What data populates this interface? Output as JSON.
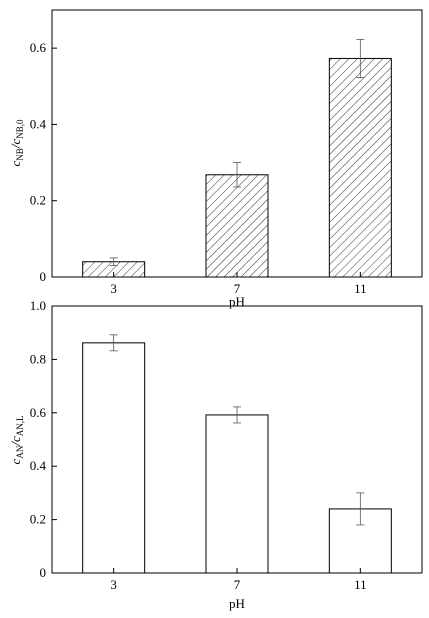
{
  "chart_data": [
    {
      "type": "bar",
      "categories": [
        "3",
        "7",
        "11"
      ],
      "values": [
        0.04,
        0.268,
        0.573
      ],
      "errors": [
        0.01,
        0.032,
        0.05
      ],
      "xlabel": "pH",
      "ylabel": {
        "main": "c",
        "sub1": "NB",
        "sep": "/c",
        "sub2": "NB,0"
      },
      "ylim": [
        0,
        0.7
      ],
      "yticks": [
        "0",
        "0.2",
        "0.4",
        "0.6"
      ],
      "ytick_values": [
        0,
        0.2,
        0.4,
        0.6
      ],
      "fill": "hatched",
      "grid": false,
      "legend": "none"
    },
    {
      "type": "bar",
      "categories": [
        "3",
        "7",
        "11"
      ],
      "values": [
        0.862,
        0.592,
        0.24
      ],
      "errors": [
        0.03,
        0.03,
        0.06
      ],
      "xlabel": "pH",
      "ylabel": {
        "main": "c",
        "sub1": "AN",
        "sep": "/c",
        "sub2": "AN,L"
      },
      "ylim": [
        0,
        1.0
      ],
      "yticks": [
        "0",
        "0.2",
        "0.4",
        "0.6",
        "0.8",
        "1.0"
      ],
      "ytick_values": [
        0,
        0.2,
        0.4,
        0.6,
        0.8,
        1.0
      ],
      "fill": "empty",
      "grid": false,
      "legend": "none"
    }
  ]
}
